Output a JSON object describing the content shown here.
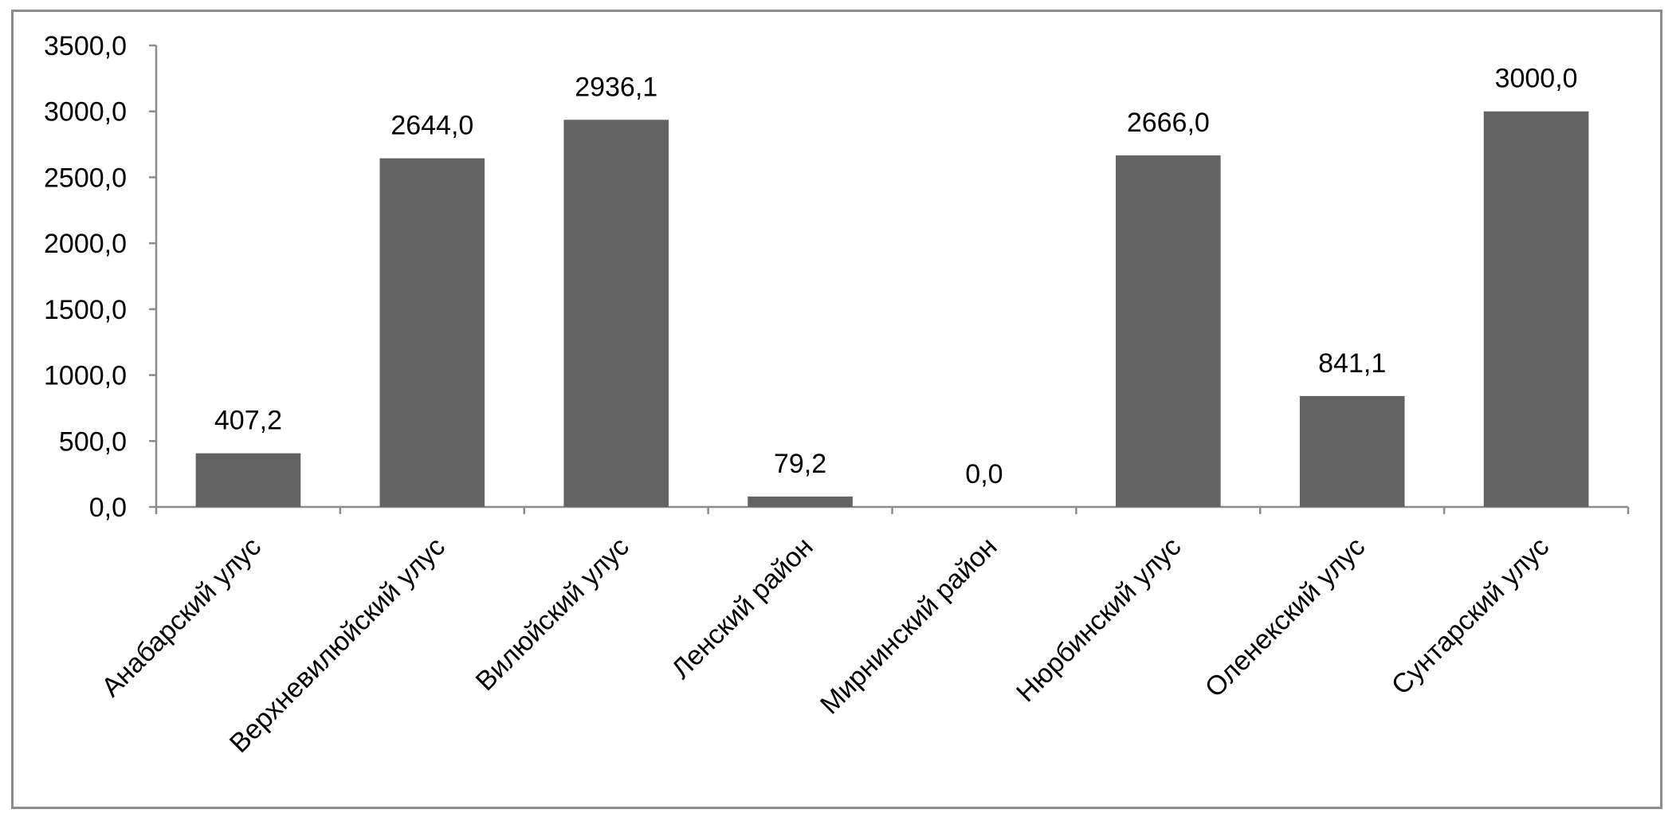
{
  "chart_data": {
    "type": "bar",
    "title": "",
    "xlabel": "",
    "ylabel": "",
    "categories": [
      "Анабарский улус",
      "Верхневилюйский улус",
      "Вилюйский улус",
      "Ленский район",
      "Мирнинский район",
      "Нюрбинский улус",
      "Оленекский улус",
      "Сунтарский улус"
    ],
    "values": [
      407.2,
      2644.0,
      2936.1,
      79.2,
      0.0,
      2666.0,
      841.1,
      3000.0
    ],
    "value_labels": [
      "407,2",
      "2644,0",
      "2936,1",
      "79,2",
      "0,0",
      "2666,0",
      "841,1",
      "3000,0"
    ],
    "ylim": [
      0,
      3500
    ],
    "yticks": [
      0,
      500,
      1000,
      1500,
      2000,
      2500,
      3000,
      3500
    ],
    "ytick_labels": [
      "0,0",
      "500,0",
      "1000,0",
      "1500,0",
      "2000,0",
      "2500,0",
      "3000,0",
      "3500,0"
    ],
    "grid": false,
    "legend": "none",
    "colors": {
      "bar": "#636363",
      "axis": "#8c8c8c",
      "frame": "#8c8c8c",
      "text": "#000000"
    }
  }
}
